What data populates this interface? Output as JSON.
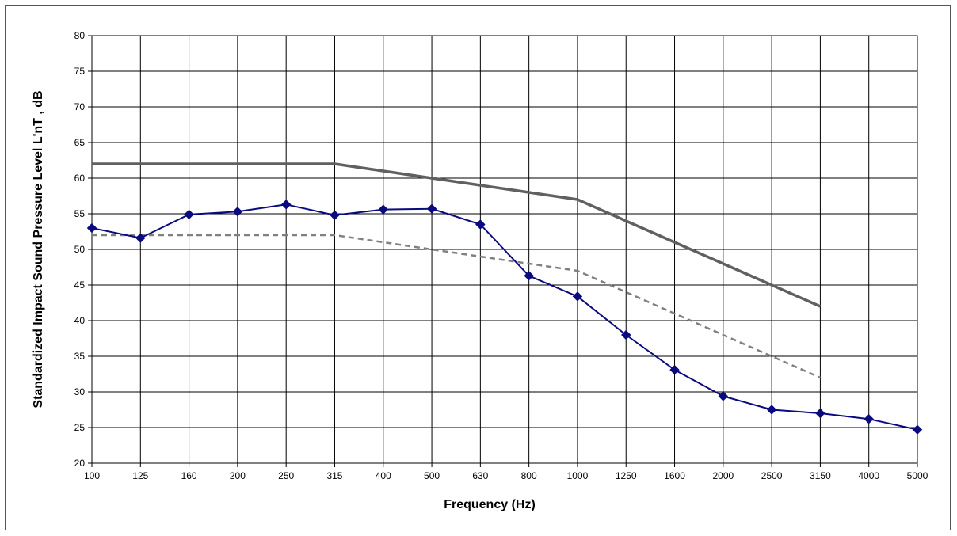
{
  "chart_data": {
    "type": "line",
    "title": "",
    "xlabel": "Frequency (Hz)",
    "ylabel": "Standardized Impact Sound Pressure Level L'nT , dB",
    "categories": [
      "100",
      "125",
      "160",
      "200",
      "250",
      "315",
      "400",
      "500",
      "630",
      "800",
      "1000",
      "1250",
      "1600",
      "2000",
      "2500",
      "3150",
      "4000",
      "5000"
    ],
    "ylim": [
      20,
      80
    ],
    "yticks": [
      20,
      25,
      30,
      35,
      40,
      45,
      50,
      55,
      60,
      65,
      70,
      75,
      80
    ],
    "grid": true,
    "legend": "none",
    "series": [
      {
        "style": "solid-thick",
        "color": "#606060",
        "markers": false,
        "values": [
          62,
          62,
          62,
          62,
          62,
          62,
          61,
          60,
          59,
          58,
          57,
          54,
          51,
          48,
          45,
          42,
          null,
          null
        ]
      },
      {
        "style": "dashed",
        "color": "#808080",
        "markers": false,
        "values": [
          52,
          52,
          52,
          52,
          52,
          52,
          51,
          50,
          49,
          48,
          47,
          44,
          41,
          38,
          35,
          32,
          null,
          null
        ]
      },
      {
        "style": "solid-diamond",
        "color": "#0a0a80",
        "markers": true,
        "values": [
          53.0,
          51.6,
          54.9,
          55.3,
          56.3,
          54.8,
          55.6,
          55.7,
          53.5,
          46.3,
          43.4,
          38.0,
          33.1,
          29.4,
          27.5,
          27.0,
          26.2,
          24.7
        ]
      }
    ]
  }
}
